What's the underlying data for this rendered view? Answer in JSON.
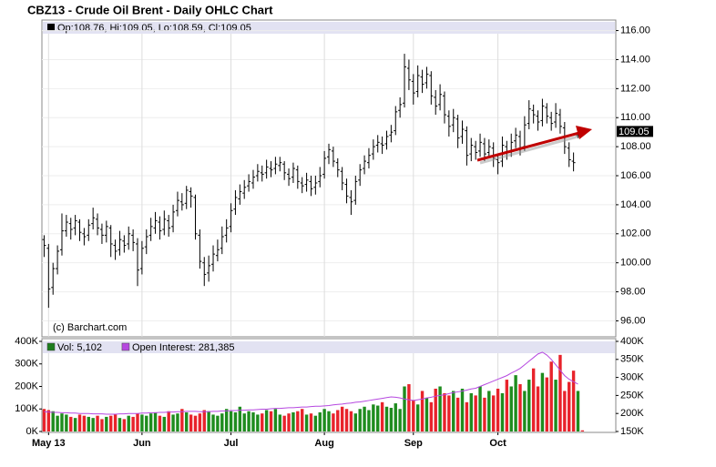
{
  "chart_data": [
    {
      "type": "ohlc",
      "title": "CBZ13 - Crude Oil Brent - Daily OHLC Chart",
      "info": "Op:108.76, Hi:109.05, Lo:108.59, Cl:109.05",
      "annotation": "(c) Barchart.com",
      "color": "#000000",
      "grid": true,
      "xlim": [
        -0.5,
        128.5
      ],
      "ylim": [
        94.9,
        116.6
      ],
      "yticks": [
        {
          "value": 96,
          "label": "96.00"
        },
        {
          "value": 98,
          "label": "98.00"
        },
        {
          "value": 100,
          "label": "100.00"
        },
        {
          "value": 102,
          "label": "102.00"
        },
        {
          "value": 104,
          "label": "104.00"
        },
        {
          "value": 106,
          "label": "106.00"
        },
        {
          "value": 108,
          "label": "108.00"
        },
        {
          "value": 110,
          "label": "110.00"
        },
        {
          "value": 112,
          "label": "112.00"
        },
        {
          "value": 114,
          "label": "114.00"
        },
        {
          "value": 116,
          "label": "116.00"
        }
      ],
      "price_marker": {
        "value": 109.05,
        "label": "109.05"
      },
      "open": [
        101.6,
        101.0,
        98.3,
        99.6,
        100.9,
        102.2,
        102.7,
        102.4,
        102.8,
        102.0,
        101.9,
        102.7,
        103.0,
        102.3,
        101.9,
        102.4,
        101.2,
        100.9,
        101.5,
        101.3,
        101.9,
        101.3,
        99.6,
        101.1,
        101.9,
        102.4,
        102.8,
        102.3,
        102.9,
        102.5,
        103.6,
        104.2,
        104.1,
        104.9,
        104.5,
        101.9,
        100.0,
        99.3,
        99.9,
        100.5,
        101.0,
        101.9,
        102.5,
        103.7,
        104.4,
        104.8,
        105.3,
        105.5,
        106.0,
        106.2,
        106.2,
        106.5,
        106.5,
        106.7,
        106.8,
        106.1,
        105.9,
        106.4,
        105.5,
        105.4,
        105.6,
        105.2,
        105.6,
        106.1,
        107.3,
        107.7,
        106.9,
        106.3,
        105.4,
        104.5,
        104.3,
        105.7,
        106.5,
        106.9,
        107.5,
        108.1,
        108.2,
        108.2,
        108.8,
        109.1,
        110.5,
        111.0,
        113.4,
        112.5,
        111.8,
        112.8,
        112.4,
        112.9,
        111.4,
        110.9,
        111.5,
        110.1,
        109.5,
        109.9,
        108.7,
        109.1,
        107.5,
        108.0,
        107.7,
        108.2,
        107.6,
        107.9,
        107.1,
        107.0,
        108.0,
        107.7,
        108.4,
        108.7,
        108.0,
        109.6,
        110.5,
        110.1,
        109.8,
        110.7,
        110.0,
        109.7,
        110.2,
        109.3,
        107.9,
        107.0,
        108.76
      ],
      "high": [
        101.9,
        101.3,
        100.0,
        101.2,
        103.4,
        103.3,
        103.1,
        103.3,
        103.0,
        102.4,
        103.0,
        103.8,
        103.4,
        102.7,
        102.9,
        102.6,
        101.6,
        102.2,
        101.9,
        102.5,
        102.3,
        101.7,
        101.5,
        102.3,
        103.1,
        103.5,
        103.2,
        103.6,
        103.3,
        104.0,
        104.9,
        104.8,
        105.3,
        105.2,
        104.7,
        102.3,
        100.4,
        100.5,
        101.2,
        101.6,
        102.5,
        103.0,
        104.1,
        105.0,
        105.4,
        105.7,
        106.1,
        106.4,
        106.8,
        106.7,
        107.1,
        107.0,
        107.3,
        107.3,
        107.0,
        106.5,
        106.9,
        106.7,
        105.9,
        106.2,
        106.0,
        106.0,
        106.6,
        107.7,
        108.2,
        108.0,
        107.2,
        106.6,
        105.8,
        105.0,
        106.0,
        106.8,
        107.4,
        107.9,
        108.5,
        108.8,
        108.7,
        109.1,
        109.5,
        110.8,
        111.4,
        114.4,
        114.0,
        113.0,
        113.6,
        113.3,
        113.5,
        113.2,
        111.9,
        112.3,
        111.8,
        110.5,
        110.6,
        110.2,
        109.8,
        109.4,
        108.6,
        108.4,
        108.9,
        108.6,
        108.5,
        108.3,
        107.5,
        108.7,
        108.4,
        108.9,
        109.3,
        109.1,
        110.1,
        111.2,
        110.9,
        110.5,
        111.3,
        111.0,
        110.4,
        111.0,
        110.6,
        109.7,
        108.3,
        107.6,
        109.05
      ],
      "low": [
        100.4,
        96.9,
        97.8,
        99.2,
        100.5,
        101.8,
        101.6,
        101.9,
        101.5,
        101.2,
        101.5,
        102.3,
        101.9,
        101.3,
        101.4,
        100.4,
        100.2,
        100.5,
        100.7,
        100.9,
        100.8,
        98.4,
        99.2,
        100.6,
        101.5,
        102.0,
        101.6,
        101.9,
        101.8,
        102.1,
        103.2,
        103.6,
        103.7,
        103.8,
        101.6,
        99.6,
        98.4,
        98.7,
        99.4,
        100.1,
        100.6,
        101.4,
        102.1,
        103.3,
        104.0,
        104.4,
        104.9,
        105.1,
        105.6,
        105.6,
        105.8,
        105.9,
        106.1,
        106.3,
        105.7,
        105.3,
        105.5,
        105.1,
        104.8,
        104.9,
        104.6,
        104.7,
        105.2,
        105.8,
        106.8,
        106.6,
        105.9,
        105.0,
        104.1,
        103.3,
        104.0,
        105.3,
        106.1,
        106.5,
        107.1,
        107.6,
        107.5,
        107.8,
        108.3,
        108.8,
        110.0,
        110.7,
        111.9,
        110.9,
        111.4,
        111.7,
        112.0,
        110.9,
        110.2,
        110.5,
        109.6,
        108.7,
        109.0,
        107.9,
        108.2,
        106.7,
        107.0,
        107.1,
        107.3,
        107.0,
        107.2,
        106.6,
        106.1,
        106.6,
        107.1,
        107.3,
        107.9,
        107.4,
        107.7,
        109.2,
        109.6,
        109.1,
        109.4,
        109.6,
        109.1,
        109.3,
        108.9,
        107.5,
        106.6,
        106.3,
        108.59
      ],
      "close": [
        101.2,
        98.2,
        99.6,
        100.8,
        102.2,
        102.8,
        102.3,
        102.9,
        102.1,
        101.8,
        102.6,
        103.1,
        102.4,
        101.9,
        102.5,
        101.3,
        100.8,
        101.6,
        101.2,
        102.0,
        101.4,
        99.5,
        101.0,
        101.8,
        102.5,
        102.9,
        102.2,
        103.0,
        102.4,
        103.5,
        104.3,
        104.0,
        105.0,
        104.6,
        102.0,
        100.1,
        99.2,
        99.8,
        100.6,
        100.9,
        101.8,
        102.4,
        103.6,
        104.5,
        104.9,
        105.2,
        105.6,
        105.9,
        106.3,
        106.1,
        106.6,
        106.4,
        106.8,
        106.9,
        106.2,
        105.8,
        106.5,
        105.6,
        105.3,
        105.7,
        105.1,
        105.5,
        106.0,
        107.2,
        107.8,
        107.0,
        106.4,
        105.5,
        104.6,
        104.2,
        105.6,
        106.4,
        107.0,
        107.4,
        108.0,
        108.3,
        108.1,
        108.7,
        109.0,
        110.4,
        110.9,
        113.5,
        112.6,
        111.7,
        112.9,
        112.3,
        113.0,
        111.5,
        110.8,
        111.6,
        110.2,
        109.4,
        110.0,
        108.6,
        109.2,
        107.4,
        108.1,
        107.6,
        108.3,
        107.5,
        108.0,
        107.2,
        106.9,
        108.1,
        107.6,
        108.3,
        108.8,
        107.9,
        109.5,
        110.6,
        110.2,
        109.7,
        110.8,
        110.1,
        109.6,
        110.3,
        109.4,
        108.0,
        107.1,
        106.9,
        109.05
      ]
    },
    {
      "type": "bar",
      "xlim": [
        -0.5,
        128.5
      ],
      "xticks": [
        {
          "value": 1,
          "label": "May 13"
        },
        {
          "value": 22,
          "label": "Jun"
        },
        {
          "value": 42,
          "label": "Jul"
        },
        {
          "value": 63,
          "label": "Aug"
        },
        {
          "value": 83,
          "label": "Sep"
        },
        {
          "value": 102,
          "label": "Oct"
        }
      ],
      "ylim": [
        0,
        400000
      ],
      "yticks": [
        {
          "value": 0,
          "label": "0K"
        },
        {
          "value": 100000,
          "label": "100K"
        },
        {
          "value": 200000,
          "label": "200K"
        },
        {
          "value": 300000,
          "label": "300K"
        },
        {
          "value": 400000,
          "label": "400K"
        }
      ],
      "y2lim": [
        150000,
        400000
      ],
      "y2ticks": [
        {
          "value": 150000,
          "label": "150K"
        },
        {
          "value": 200000,
          "label": "200K"
        },
        {
          "value": 250000,
          "label": "250K"
        },
        {
          "value": 300000,
          "label": "300K"
        },
        {
          "value": 350000,
          "label": "350K"
        },
        {
          "value": 400000,
          "label": "400K"
        }
      ],
      "series": [
        {
          "name": "Vol: 5,102",
          "type": "bar",
          "color": "#1e7d1e",
          "up_color": "#1e8c1e",
          "down_color": "#e8232b",
          "values": [
            100000,
            95000,
            90000,
            70000,
            80000,
            75000,
            65000,
            60000,
            75000,
            70000,
            65000,
            60000,
            70000,
            55000,
            65000,
            70000,
            75000,
            60000,
            55000,
            70000,
            65000,
            80000,
            75000,
            70000,
            80000,
            85000,
            70000,
            65000,
            90000,
            75000,
            80000,
            100000,
            85000,
            75000,
            70000,
            80000,
            95000,
            90000,
            75000,
            70000,
            80000,
            100000,
            90000,
            85000,
            110000,
            80000,
            90000,
            85000,
            75000,
            80000,
            95000,
            90000,
            100000,
            75000,
            70000,
            80000,
            85000,
            90000,
            100000,
            75000,
            80000,
            70000,
            85000,
            100000,
            90000,
            80000,
            95000,
            110000,
            100000,
            90000,
            80000,
            100000,
            110000,
            95000,
            120000,
            115000,
            130000,
            110000,
            105000,
            125000,
            100000,
            200000,
            210000,
            140000,
            120000,
            180000,
            150000,
            130000,
            190000,
            200000,
            170000,
            160000,
            180000,
            150000,
            190000,
            130000,
            170000,
            160000,
            200000,
            150000,
            180000,
            160000,
            190000,
            170000,
            230000,
            200000,
            250000,
            210000,
            180000,
            230000,
            280000,
            200000,
            260000,
            240000,
            310000,
            230000,
            340000,
            180000,
            220000,
            270000,
            180000,
            5102
          ]
        },
        {
          "name": "Open Interest: 281,385",
          "type": "line",
          "axis": "y2",
          "color": "#b648e0",
          "values": [
            205000,
            204000,
            203000,
            203000,
            202000,
            202000,
            201000,
            201000,
            200000,
            200000,
            200000,
            199000,
            199000,
            199000,
            198000,
            198000,
            198000,
            199000,
            199000,
            200000,
            200000,
            200000,
            201000,
            201000,
            202000,
            202000,
            203000,
            203000,
            204000,
            204000,
            205000,
            205000,
            206000,
            206000,
            206000,
            205000,
            205000,
            205000,
            206000,
            206000,
            207000,
            207000,
            208000,
            208000,
            209000,
            209000,
            210000,
            210000,
            211000,
            212000,
            212000,
            213000,
            214000,
            214000,
            215000,
            216000,
            216000,
            217000,
            218000,
            218000,
            219000,
            220000,
            220000,
            221000,
            222000,
            224000,
            225000,
            226000,
            228000,
            229000,
            231000,
            232000,
            234000,
            236000,
            238000,
            240000,
            242000,
            244000,
            246000,
            245000,
            243000,
            240000,
            238000,
            236000,
            238000,
            240000,
            243000,
            245000,
            248000,
            250000,
            252000,
            255000,
            258000,
            260000,
            262000,
            265000,
            268000,
            270000,
            275000,
            280000,
            285000,
            290000,
            295000,
            300000,
            305000,
            312000,
            318000,
            325000,
            335000,
            345000,
            355000,
            365000,
            370000,
            362000,
            350000,
            335000,
            320000,
            305000,
            295000,
            288000,
            281385
          ]
        }
      ]
    }
  ]
}
